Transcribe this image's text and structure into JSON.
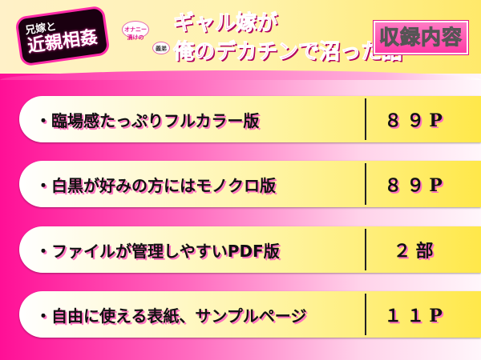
{
  "header": {
    "logo_top": "兄嫁と",
    "logo_bottom": "近親相姦",
    "bubble1": "オナニー漬けの",
    "bubble2": "義弟",
    "title_line1": "ギャル嫁が",
    "title_line2": "俺のデカチンで沼った話",
    "badge": "収録内容"
  },
  "items": [
    {
      "label": "・臨場感たっぷりフルカラー版",
      "value": "８９P"
    },
    {
      "label": "・白黒が好みの方にはモノクロ版",
      "value": "８９P"
    },
    {
      "label": "・ファイルが管理しやすいPDF版",
      "value": "２部"
    },
    {
      "label": "・自由に使える表紙、サンプルページ",
      "value": "１１P"
    }
  ],
  "colors": {
    "pink": "#ff0f96",
    "yellow": "#ffe84a"
  }
}
